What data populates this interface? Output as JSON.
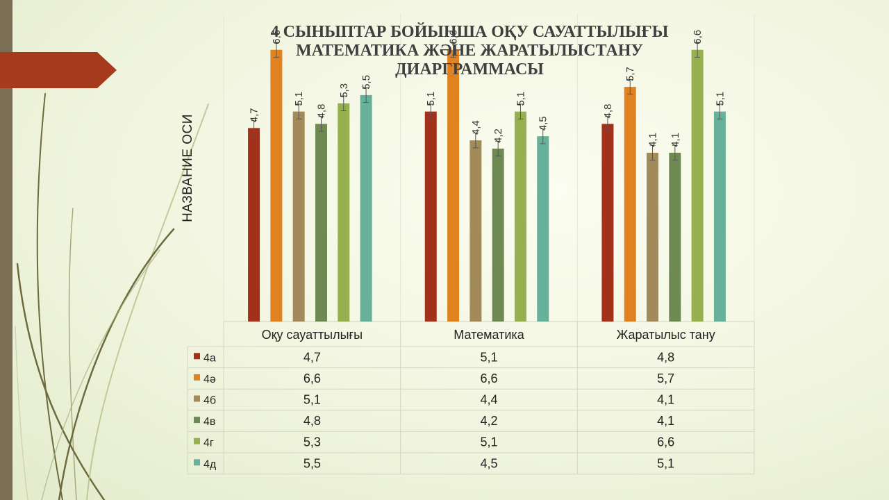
{
  "slide": {
    "colors": {
      "stripe": "#7a6f55",
      "banner": "#a63a1c",
      "background": "#f4f7e4"
    }
  },
  "chart_data": {
    "type": "bar",
    "title": "4 СЫНЫПТАР БОЙЫНША ОҚУ САУАТТЫЛЫҒЫ МАТЕМАТИКА ЖӘНЕ ЖАРАТЫЛЫСТАНУ ДИАРГРАММАСЫ",
    "title_lines": [
      "4 СЫНЫПТАР БОЙЫНША ОҚУ САУАТТЫЛЫҒЫ",
      "МАТЕМАТИКА ЖӘНЕ ЖАРАТЫЛЫСТАНУ",
      "ДИАРГРАММАСЫ"
    ],
    "xlabel": "",
    "ylabel": "НАЗВАНИЕ ОСИ",
    "ylim": [
      0,
      7
    ],
    "grid": false,
    "error_bars": true,
    "data_table": true,
    "categories": [
      "Оқу сауаттылығы",
      "Математика",
      "Жаратылыс тану"
    ],
    "series": [
      {
        "name": "4а",
        "color": "#a3301a",
        "values": [
          4.7,
          5.1,
          4.8
        ],
        "labels": [
          "4,7",
          "5,1",
          "4,8"
        ]
      },
      {
        "name": "4ә",
        "color": "#e0821f",
        "values": [
          6.6,
          6.6,
          5.7
        ],
        "labels": [
          "6,6",
          "6,6",
          "5,7"
        ]
      },
      {
        "name": "4б",
        "color": "#a38a5a",
        "values": [
          5.1,
          4.4,
          4.1
        ],
        "labels": [
          "5,1",
          "4,4",
          "4,1"
        ]
      },
      {
        "name": "4в",
        "color": "#6e8a52",
        "values": [
          4.8,
          4.2,
          4.1
        ],
        "labels": [
          "4,8",
          "4,2",
          "4,1"
        ]
      },
      {
        "name": "4г",
        "color": "#96b04f",
        "values": [
          5.3,
          5.1,
          6.6
        ],
        "labels": [
          "5,3",
          "5,1",
          "6,6"
        ]
      },
      {
        "name": "4д",
        "color": "#67b09a",
        "values": [
          5.5,
          4.5,
          5.1
        ],
        "labels": [
          "5,5",
          "4,5",
          "5,1"
        ]
      }
    ]
  }
}
